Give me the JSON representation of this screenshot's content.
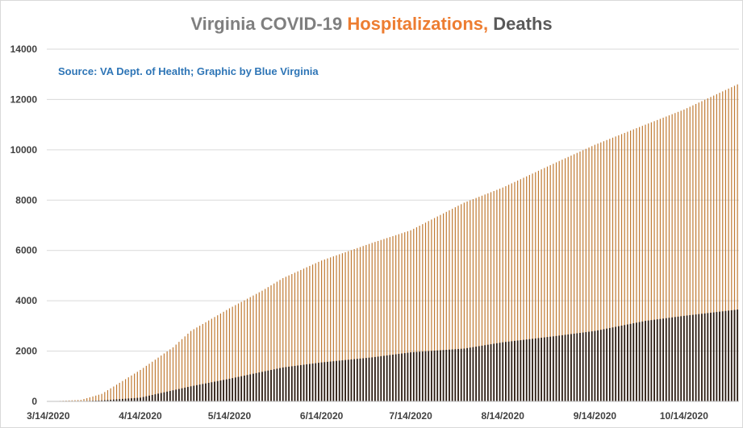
{
  "chart_data": {
    "type": "bar",
    "title_parts": [
      {
        "text": "Virginia COVID-19 ",
        "color": "#7f7f7f"
      },
      {
        "text": "Hospitalizations,",
        "color": "#ed7d31"
      },
      {
        "text": " Deaths",
        "color": "#595959"
      }
    ],
    "source_note": "Source: VA Dept. of Health; Graphic by Blue Virginia",
    "ylim": [
      0,
      14000
    ],
    "yticks": [
      "0",
      "2000",
      "4000",
      "6000",
      "8000",
      "10000",
      "12000",
      "14000"
    ],
    "xticks": [
      "3/14/2020",
      "4/14/2020",
      "5/14/2020",
      "6/14/2020",
      "7/14/2020",
      "8/14/2020",
      "9/14/2020",
      "10/14/2020"
    ],
    "x_start": "2020-03-14",
    "x_end": "2020-11-01",
    "grid": true,
    "series": [
      {
        "color": "#c07a33",
        "anchors": [
          [
            "2020-03-14",
            0
          ],
          [
            "2020-03-25",
            60
          ],
          [
            "2020-04-01",
            300
          ],
          [
            "2020-04-14",
            1250
          ],
          [
            "2020-04-25",
            2150
          ],
          [
            "2020-05-01",
            2800
          ],
          [
            "2020-05-14",
            3700
          ],
          [
            "2020-05-25",
            4400
          ],
          [
            "2020-06-01",
            4900
          ],
          [
            "2020-06-14",
            5600
          ],
          [
            "2020-07-01",
            6300
          ],
          [
            "2020-07-14",
            6800
          ],
          [
            "2020-08-01",
            7900
          ],
          [
            "2020-08-14",
            8500
          ],
          [
            "2020-09-01",
            9500
          ],
          [
            "2020-09-14",
            10200
          ],
          [
            "2020-10-01",
            11000
          ],
          [
            "2020-10-14",
            11600
          ],
          [
            "2020-11-01",
            12600
          ]
        ]
      },
      {
        "color": "#2a1a10",
        "anchors": [
          [
            "2020-03-14",
            0
          ],
          [
            "2020-03-25",
            10
          ],
          [
            "2020-04-01",
            40
          ],
          [
            "2020-04-14",
            150
          ],
          [
            "2020-05-01",
            600
          ],
          [
            "2020-05-14",
            900
          ],
          [
            "2020-06-01",
            1350
          ],
          [
            "2020-06-14",
            1550
          ],
          [
            "2020-07-01",
            1750
          ],
          [
            "2020-07-14",
            1950
          ],
          [
            "2020-08-01",
            2100
          ],
          [
            "2020-08-14",
            2350
          ],
          [
            "2020-09-01",
            2600
          ],
          [
            "2020-09-14",
            2800
          ],
          [
            "2020-10-01",
            3200
          ],
          [
            "2020-10-14",
            3400
          ],
          [
            "2020-11-01",
            3650
          ]
        ]
      }
    ]
  }
}
